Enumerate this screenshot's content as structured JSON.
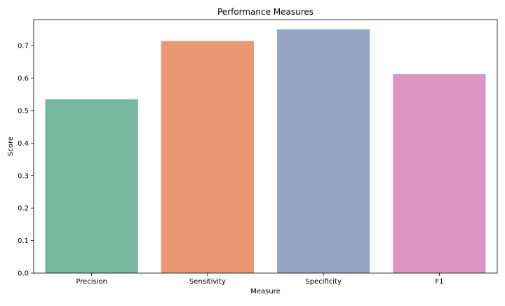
{
  "chart_data": {
    "type": "bar",
    "title": "Performance Measures",
    "xlabel": "Measure",
    "ylabel": "Score",
    "categories": [
      "Precision",
      "Sensitivity",
      "Specificity",
      "F1"
    ],
    "values": [
      0.535,
      0.714,
      0.75,
      0.612
    ],
    "colors": [
      "#76b7a0",
      "#ea9874",
      "#96a5c4",
      "#db95c0"
    ],
    "ylim": [
      0,
      0.78
    ],
    "yticks": [
      "0.0",
      "0.1",
      "0.2",
      "0.3",
      "0.4",
      "0.5",
      "0.6",
      "0.7"
    ],
    "grid": false,
    "legend": "none"
  }
}
